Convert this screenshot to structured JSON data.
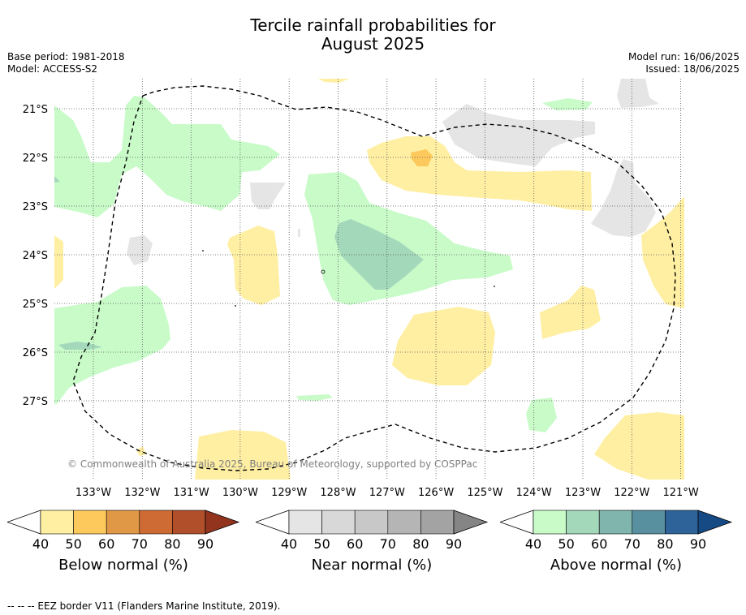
{
  "title_line1": "Tercile rainfall probabilities for",
  "title_line2": "August 2025",
  "meta_left": [
    "Base period: 1981-2018",
    "Model: ACCESS-S2"
  ],
  "meta_right": [
    "Model run: 16/06/2025",
    "Issued: 18/06/2025"
  ],
  "lat_labels": [
    "21°S",
    "22°S",
    "23°S",
    "24°S",
    "25°S",
    "26°S",
    "27°S"
  ],
  "lon_labels": [
    "133°W",
    "132°W",
    "131°W",
    "130°W",
    "129°W",
    "128°W",
    "127°W",
    "126°W",
    "125°W",
    "124°W",
    "123°W",
    "122°W",
    "121°W"
  ],
  "copyright": "© Commonwealth of Australia 2025, Bureau of Meteorology, supported by COSPPac",
  "colorbars": [
    {
      "label": "Below normal (%)",
      "ticks": [
        "40",
        "50",
        "60",
        "70",
        "80",
        "90"
      ],
      "colors": [
        "#ffefa3",
        "#fdc95c",
        "#e09846",
        "#ce6a33",
        "#b14f2b",
        "#93351e"
      ]
    },
    {
      "label": "Near normal (%)",
      "ticks": [
        "40",
        "50",
        "60",
        "70",
        "80",
        "90"
      ],
      "colors": [
        "#e5e5e5",
        "#d8d8d8",
        "#c8c8c8",
        "#b5b5b5",
        "#a3a3a3",
        "#858585"
      ]
    },
    {
      "label": "Above normal (%)",
      "ticks": [
        "40",
        "50",
        "60",
        "70",
        "80",
        "90"
      ],
      "colors": [
        "#c9fbc9",
        "#a3d8ba",
        "#7fb5ad",
        "#5890a0",
        "#2d6399",
        "#164a84"
      ]
    }
  ],
  "footer": "--  --  -- EEZ border V11 (Flanders Marine Institute, 2019).",
  "colors": {
    "below_40": "#ffefa3",
    "below_50": "#fdc95c",
    "near_40": "#e5e5e5",
    "above_40": "#c9fbc9",
    "above_50": "#a3d8ba"
  }
}
